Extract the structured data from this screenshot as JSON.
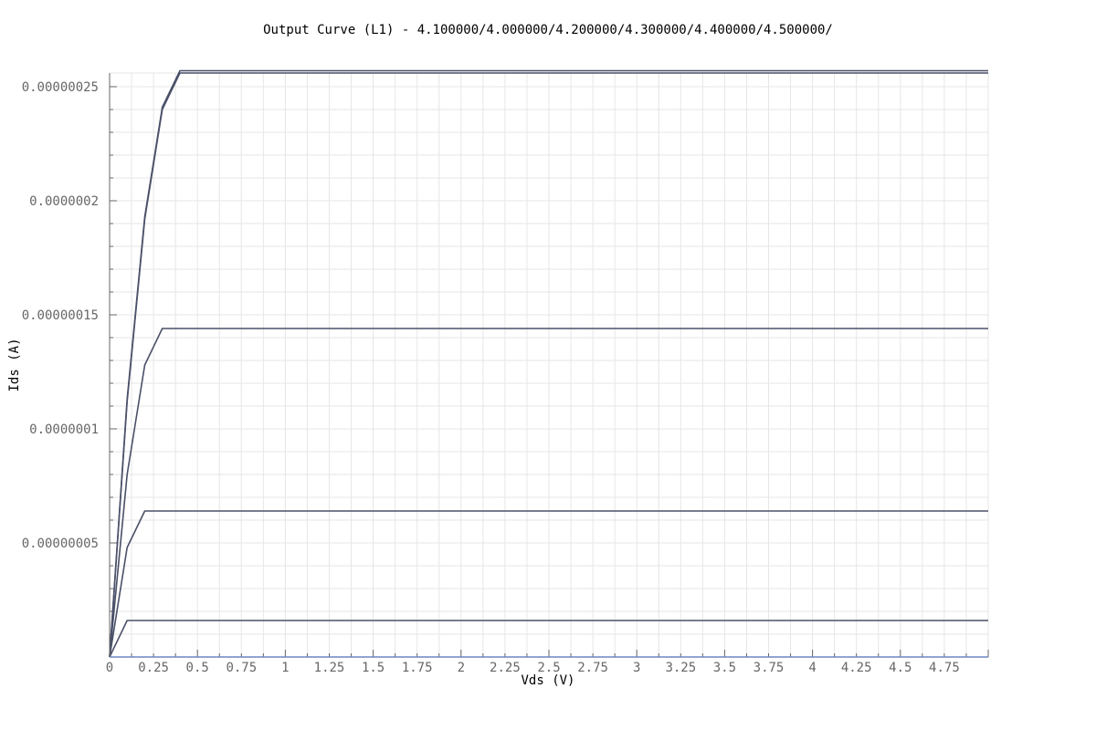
{
  "chart_data": {
    "type": "line",
    "title": "Output Curve (L1) - 4.100000/4.000000/4.200000/4.300000/4.400000/4.500000/",
    "xlabel": "Vds (V)",
    "ylabel": "Ids (A)",
    "xlim": [
      0,
      5
    ],
    "ylim": [
      0,
      2.56e-07
    ],
    "grid": true,
    "x_ticks": [
      "0",
      "0.25",
      "0.5",
      "0.75",
      "1",
      "1.25",
      "1.5",
      "1.75",
      "2",
      "2.25",
      "2.5",
      "2.75",
      "3",
      "3.25",
      "3.5",
      "3.75",
      "4",
      "4.25",
      "4.5",
      "4.75"
    ],
    "y_ticks": [
      {
        "value": 5e-08,
        "label": "0.00000005"
      },
      {
        "value": 1e-07,
        "label": "0.0000001"
      },
      {
        "value": 1.5e-07,
        "label": "0.00000015"
      },
      {
        "value": 2e-07,
        "label": "0.0000002"
      },
      {
        "value": 2.5e-07,
        "label": "0.00000025"
      }
    ],
    "colors": {
      "line": "#4a5068",
      "baseline": "#6b86c4",
      "grid": "#e6e6e6",
      "axis": "#666666"
    },
    "series": [
      {
        "x": [
          0,
          5
        ],
        "y": [
          0,
          0
        ]
      },
      {
        "x": [
          0,
          0.1,
          5
        ],
        "y": [
          0,
          1.6e-08,
          1.6e-08
        ]
      },
      {
        "x": [
          0,
          0.1,
          0.2,
          5
        ],
        "y": [
          0,
          4.8e-08,
          6.4e-08,
          6.4e-08
        ]
      },
      {
        "x": [
          0,
          0.1,
          0.2,
          0.3,
          5
        ],
        "y": [
          0,
          8e-08,
          1.28e-07,
          1.44e-07,
          1.44e-07
        ]
      },
      {
        "x": [
          0,
          0.1,
          0.2,
          0.3,
          0.4,
          5
        ],
        "y": [
          0,
          1.12e-07,
          1.92e-07,
          2.4e-07,
          2.56e-07,
          2.56e-07
        ]
      },
      {
        "x": [
          0,
          0.1,
          0.2,
          0.3,
          0.4,
          5
        ],
        "y": [
          0,
          1.13e-07,
          1.93e-07,
          2.41e-07,
          2.57e-07,
          2.57e-07
        ]
      }
    ]
  }
}
